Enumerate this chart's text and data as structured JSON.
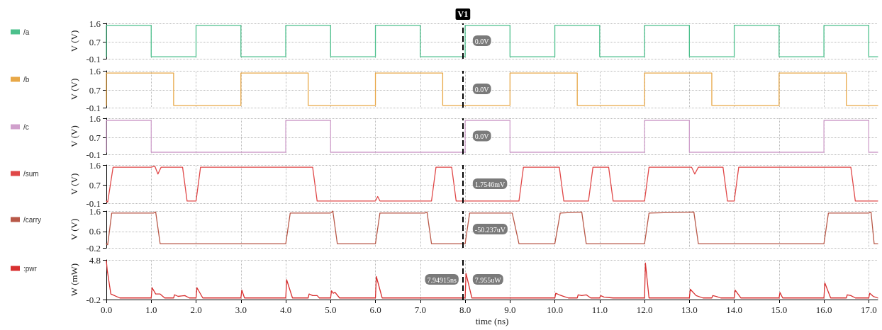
{
  "chart_data": [
    {
      "type": "step",
      "xlim": [
        0,
        17.2
      ],
      "xticks": [
        0,
        1,
        2,
        3,
        4,
        5,
        6,
        7,
        8,
        9,
        10,
        11,
        12,
        13,
        14,
        15,
        16,
        17
      ],
      "ylim": [
        -0.1,
        1.6
      ],
      "yticks": [
        -0.1,
        0.7,
        1.6
      ],
      "ylabel": "V (V)",
      "tick_labels": "y",
      "grid": true,
      "legend": "left",
      "marker": "none",
      "line_style": "solid",
      "x": [
        0,
        0,
        1,
        2,
        3,
        4,
        5,
        6,
        7,
        8,
        9,
        10,
        11,
        12,
        13,
        14,
        15,
        16,
        17,
        17.2
      ],
      "series": [
        {
          "name": "/a",
          "color": "#4cc08c",
          "values": [
            0,
            1.5,
            0,
            1.5,
            0,
            1.5,
            0,
            1.5,
            0,
            1.5,
            0,
            1.5,
            0,
            1.5,
            0,
            1.5,
            0,
            1.5,
            0,
            0
          ]
        }
      ],
      "ref_lines": [
        {
          "axis": "x",
          "value": 7.94915,
          "label": "V1",
          "color": "#000000",
          "line_style": "dashed"
        }
      ],
      "annotations": [
        "0.0V"
      ]
    },
    {
      "type": "step",
      "xlim": [
        0,
        17.2
      ],
      "xticks": [
        0,
        1,
        2,
        3,
        4,
        5,
        6,
        7,
        8,
        9,
        10,
        11,
        12,
        13,
        14,
        15,
        16,
        17
      ],
      "ylim": [
        -0.1,
        1.6
      ],
      "yticks": [
        -0.1,
        0.7,
        1.6
      ],
      "ylabel": "V (V)",
      "tick_labels": "y",
      "grid": true,
      "legend": "left",
      "marker": "none",
      "line_style": "solid",
      "x": [
        0,
        0,
        1.5,
        3,
        4.5,
        6,
        7.5,
        9,
        10.5,
        12,
        13.5,
        15,
        16.5,
        17.2
      ],
      "series": [
        {
          "name": "/b",
          "color": "#e8a848",
          "values": [
            0,
            1.5,
            0,
            1.5,
            0,
            1.5,
            0,
            1.5,
            0,
            1.5,
            0,
            1.5,
            0,
            0
          ]
        }
      ],
      "ref_lines": [
        {
          "axis": "x",
          "value": 7.94915,
          "color": "#000000",
          "line_style": "dashed"
        }
      ],
      "annotations": [
        "0.0V"
      ]
    },
    {
      "type": "step",
      "xlim": [
        0,
        17.2
      ],
      "xticks": [
        0,
        1,
        2,
        3,
        4,
        5,
        6,
        7,
        8,
        9,
        10,
        11,
        12,
        13,
        14,
        15,
        16,
        17
      ],
      "ylim": [
        -0.1,
        1.6
      ],
      "yticks": [
        -0.1,
        0.7,
        1.6
      ],
      "ylabel": "V (V)",
      "tick_labels": "y",
      "grid": true,
      "legend": "left",
      "marker": "none",
      "line_style": "solid",
      "x": [
        0,
        0,
        1,
        4,
        5,
        8,
        9,
        12,
        13,
        16,
        17,
        17.2
      ],
      "series": [
        {
          "name": "/c",
          "color": "#d0a0cc",
          "values": [
            0,
            1.5,
            0,
            1.5,
            0,
            1.5,
            0,
            1.5,
            0,
            1.5,
            0,
            0
          ]
        }
      ],
      "ref_lines": [
        {
          "axis": "x",
          "value": 7.94915,
          "color": "#000000",
          "line_style": "dashed"
        }
      ],
      "annotations": [
        "0.0V"
      ]
    },
    {
      "type": "line",
      "xlim": [
        0,
        17.2
      ],
      "xticks": [
        0,
        1,
        2,
        3,
        4,
        5,
        6,
        7,
        8,
        9,
        10,
        11,
        12,
        13,
        14,
        15,
        16,
        17
      ],
      "ylim": [
        -0.1,
        1.6
      ],
      "yticks": [
        -0.1,
        0.7,
        1.6
      ],
      "ylabel": "V (V)",
      "tick_labels": "y",
      "grid": true,
      "legend": "left",
      "marker": "none",
      "line_style": "solid",
      "x": [
        0,
        0.03,
        0.15,
        1.0,
        1.08,
        1.15,
        1.22,
        1.7,
        1.8,
        2.0,
        2.1,
        4.6,
        4.7,
        6.0,
        6.05,
        6.1,
        7.25,
        7.35,
        7.7,
        7.8,
        9.2,
        9.3,
        10.1,
        10.2,
        10.75,
        10.85,
        11.2,
        11.3,
        12.0,
        12.1,
        13.05,
        13.12,
        13.2,
        13.75,
        13.85,
        14.0,
        14.1,
        16.6,
        16.7,
        17.2
      ],
      "series": [
        {
          "name": "/sum",
          "color": "#e04848",
          "values": [
            0,
            -0.05,
            1.5,
            1.5,
            1.55,
            1.2,
            1.5,
            1.5,
            0,
            0,
            1.5,
            1.5,
            0,
            0,
            0.2,
            0,
            0,
            1.5,
            1.5,
            0,
            0,
            1.5,
            1.5,
            0,
            0,
            1.5,
            1.5,
            0,
            0,
            1.5,
            1.5,
            1.2,
            1.5,
            1.5,
            0,
            0,
            1.5,
            1.5,
            0,
            0
          ]
        }
      ],
      "ref_lines": [
        {
          "axis": "x",
          "value": 7.94915,
          "color": "#000000",
          "line_style": "dashed"
        }
      ],
      "annotations": [
        "1.7546mV"
      ]
    },
    {
      "type": "line",
      "xlim": [
        0,
        17.2
      ],
      "xticks": [
        0,
        1,
        2,
        3,
        4,
        5,
        6,
        7,
        8,
        9,
        10,
        11,
        12,
        13,
        14,
        15,
        16,
        17
      ],
      "ylim": [
        -0.2,
        1.6
      ],
      "yticks": [
        -0.2,
        0.6,
        1.6
      ],
      "ylabel": "V (V)",
      "tick_labels": "y",
      "grid": true,
      "legend": "left",
      "marker": "none",
      "line_style": "solid",
      "x": [
        0,
        0.03,
        0.12,
        1.05,
        1.1,
        1.2,
        4.0,
        4.1,
        5.0,
        5.05,
        5.15,
        6.0,
        6.1,
        7.1,
        7.15,
        7.25,
        8.0,
        8.1,
        9.05,
        9.2,
        10.0,
        10.12,
        10.6,
        10.7,
        12.0,
        12.1,
        13.1,
        13.2,
        16.0,
        16.1,
        17.0,
        17.05,
        17.12,
        17.2
      ],
      "series": [
        {
          "name": "/carry",
          "color": "#b85848",
          "values": [
            0,
            -0.05,
            1.5,
            1.5,
            1.55,
            0,
            0,
            1.5,
            1.5,
            1.6,
            0,
            0,
            1.5,
            1.5,
            1.55,
            0,
            0,
            1.5,
            1.5,
            0,
            0,
            1.5,
            1.55,
            0,
            0,
            1.5,
            1.55,
            0,
            0,
            1.5,
            1.5,
            1.55,
            0,
            0
          ]
        }
      ],
      "ref_lines": [
        {
          "axis": "x",
          "value": 7.94915,
          "color": "#000000",
          "line_style": "dashed"
        }
      ],
      "annotations": [
        "-50.237uV"
      ]
    },
    {
      "type": "line",
      "xlim": [
        0,
        17.2
      ],
      "xticks": [
        {
          "value": 0,
          "label": "0.0"
        },
        {
          "value": 1,
          "label": "1.0"
        },
        {
          "value": 2,
          "label": "2.0"
        },
        {
          "value": 3,
          "label": "3.0"
        },
        {
          "value": 4,
          "label": "4.0"
        },
        {
          "value": 5,
          "label": "5.0"
        },
        {
          "value": 6,
          "label": "6.0"
        },
        {
          "value": 7,
          "label": "7.0"
        },
        {
          "value": 8,
          "label": "8.0"
        },
        {
          "value": 9,
          "label": "9.0"
        },
        {
          "value": 10,
          "label": "10.0"
        },
        {
          "value": 11,
          "label": "11.0"
        },
        {
          "value": 12,
          "label": "12.0"
        },
        {
          "value": 13,
          "label": "13.0"
        },
        {
          "value": 14,
          "label": "14.0"
        },
        {
          "value": 15,
          "label": "15.0"
        },
        {
          "value": 16,
          "label": "16.0"
        },
        {
          "value": 17,
          "label": "17.0"
        }
      ],
      "ylim": [
        -0.2,
        4.8
      ],
      "yticks": [
        -0.2,
        4.8
      ],
      "ylabel": "W (mW)",
      "xlabel": "time (ns)",
      "grid": true,
      "legend": "left",
      "marker": "none",
      "line_style": "solid",
      "x": [
        0,
        0.02,
        0.1,
        0.3,
        1.0,
        1.02,
        1.1,
        1.2,
        1.3,
        1.5,
        1.52,
        1.6,
        1.75,
        1.85,
        2.0,
        2.02,
        2.15,
        3.0,
        3.02,
        3.08,
        4.0,
        4.02,
        4.15,
        4.5,
        4.52,
        4.6,
        4.7,
        4.75,
        5.0,
        5.02,
        5.06,
        5.1,
        5.2,
        6.0,
        6.02,
        6.15,
        8.0,
        8.02,
        8.15,
        10.0,
        10.02,
        10.1,
        10.2,
        10.3,
        10.5,
        10.52,
        10.6,
        10.7,
        10.8,
        11.0,
        11.02,
        11.1,
        11.3,
        12.0,
        12.02,
        12.1,
        13.0,
        13.02,
        13.15,
        13.3,
        13.5,
        13.52,
        13.6,
        13.7,
        14.0,
        14.02,
        14.15,
        15.0,
        15.02,
        15.08,
        16.0,
        16.02,
        16.15,
        16.5,
        16.52,
        16.6,
        16.7,
        17.0,
        17.02,
        17.1,
        17.2
      ],
      "series": [
        {
          "name": ":pwr",
          "color": "#d83030",
          "values": [
            4.7,
            3.5,
            0.5,
            0,
            0,
            1.3,
            0.5,
            0.5,
            0,
            0,
            0.4,
            0.2,
            0.3,
            0,
            0,
            1.3,
            0,
            0,
            1.0,
            0,
            0,
            2.3,
            0,
            0,
            0.5,
            0.3,
            0.3,
            0,
            0,
            0.9,
            0.6,
            0.7,
            0,
            0,
            2.7,
            0,
            0,
            3.1,
            0,
            0,
            0.6,
            0.4,
            0.2,
            0,
            0,
            0.4,
            0.3,
            0.4,
            0,
            0,
            0.3,
            0.1,
            0,
            0,
            4.4,
            0,
            0,
            1.1,
            0.3,
            0,
            0,
            0.3,
            0.2,
            0,
            0,
            1.0,
            0,
            0,
            0.7,
            0,
            0,
            1.9,
            0,
            0,
            0.4,
            0.3,
            0,
            0,
            0.6,
            0.2,
            0
          ]
        }
      ],
      "ref_lines": [
        {
          "axis": "x",
          "value": 7.94915,
          "color": "#000000",
          "line_style": "dashed"
        }
      ],
      "annotations": [
        "7.955uW",
        "7.94915ns"
      ]
    }
  ]
}
